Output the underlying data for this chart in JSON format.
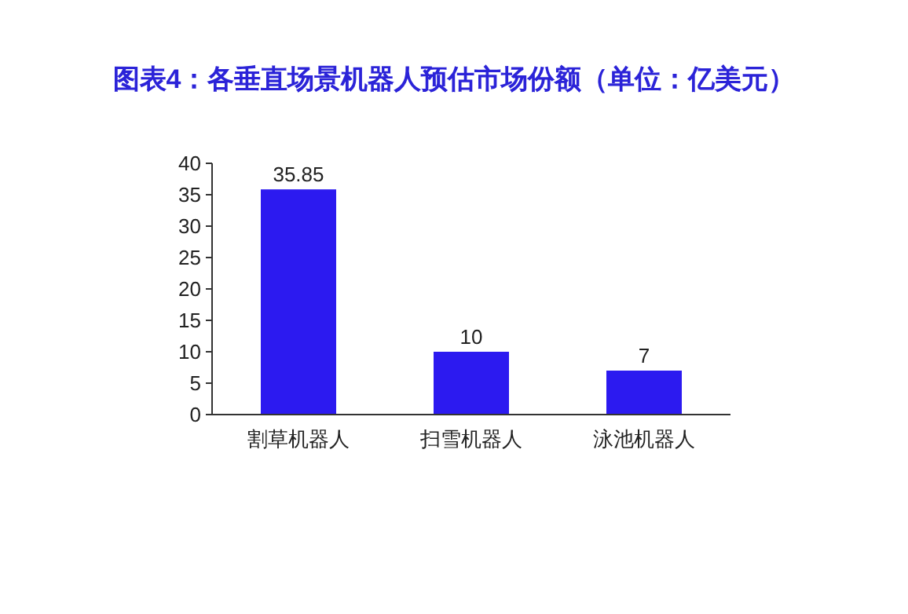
{
  "chart_data": {
    "type": "bar",
    "title": "图表4：各垂直场景机器人预估市场份额（单位：亿美元）",
    "categories": [
      "割草机器人",
      "扫雪机器人",
      "泳池机器人"
    ],
    "values": [
      35.85,
      10,
      7
    ],
    "color": "#2c1af0",
    "ylim": [
      0,
      40
    ],
    "yticks": [
      0,
      5,
      10,
      15,
      20,
      25,
      30,
      35,
      40
    ],
    "data_labels": true
  }
}
